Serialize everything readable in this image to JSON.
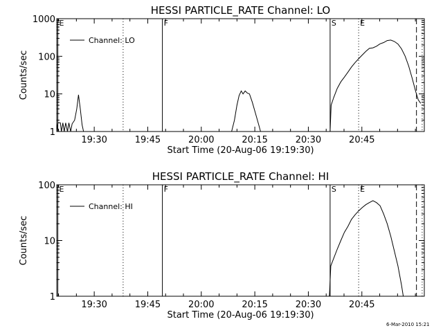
{
  "footer": {
    "date_stamp": "6-Mar-2010 15:21"
  },
  "chart_data": [
    {
      "type": "line",
      "title": "HESSI PARTICLE_RATE Channel: LO",
      "xlabel": "Start Time (20-Aug-06 19:19:30)",
      "ylabel": "Counts/sec",
      "x_unit": "minutes after 19:19:30",
      "xlim": [
        0,
        103
      ],
      "ylim": [
        1,
        1000
      ],
      "yscale": "log",
      "xticks": [
        {
          "x": 10.5,
          "label": "19:30"
        },
        {
          "x": 25.5,
          "label": "19:45"
        },
        {
          "x": 40.5,
          "label": "20:00"
        },
        {
          "x": 55.5,
          "label": "20:15"
        },
        {
          "x": 70.5,
          "label": "20:30"
        },
        {
          "x": 85.5,
          "label": "20:45"
        }
      ],
      "yticks": [
        {
          "y": 1,
          "label": "1"
        },
        {
          "y": 10,
          "label": "10"
        },
        {
          "y": 100,
          "label": "100"
        },
        {
          "y": 1000,
          "label": "1000"
        }
      ],
      "legend": {
        "position": "top-left",
        "entries": [
          "Channel: LO"
        ]
      },
      "markers": [
        {
          "label": "E",
          "x": 0.3,
          "style": "solid"
        },
        {
          "label": "",
          "x": 18.6,
          "style": "dotted"
        },
        {
          "label": "F",
          "x": 29.6,
          "style": "solid"
        },
        {
          "label": "S",
          "x": 76.6,
          "style": "solid"
        },
        {
          "label": "E",
          "x": 84.6,
          "style": "dotted"
        },
        {
          "label": "",
          "x": 100.8,
          "style": "dashed"
        },
        {
          "label": "",
          "x": 102.4,
          "style": "dotted"
        }
      ],
      "series": [
        {
          "name": "Channel: LO",
          "points": [
            [
              0,
              1
            ],
            [
              0.3,
              1.7
            ],
            [
              1,
              1.7
            ],
            [
              1.3,
              1
            ],
            [
              1.7,
              1.7
            ],
            [
              2.1,
              1
            ],
            [
              2.5,
              1.7
            ],
            [
              3,
              1
            ],
            [
              3.4,
              1.7
            ],
            [
              3.9,
              1
            ],
            [
              4.3,
              1.6
            ],
            [
              5,
              2
            ],
            [
              5.6,
              4
            ],
            [
              6.1,
              9.5
            ],
            [
              6.6,
              4
            ],
            [
              7.1,
              1.5
            ],
            [
              7.5,
              1
            ],
            [
              49,
              1
            ],
            [
              49.8,
              2
            ],
            [
              50.5,
              5
            ],
            [
              51.1,
              9
            ],
            [
              51.7,
              12
            ],
            [
              52.2,
              10
            ],
            [
              52.8,
              12
            ],
            [
              53.4,
              10.5
            ],
            [
              54,
              10
            ],
            [
              54.8,
              6
            ],
            [
              55.7,
              3
            ],
            [
              56.6,
              1.5
            ],
            [
              57.1,
              1
            ],
            [
              76.6,
              1
            ],
            [
              76.9,
              5
            ],
            [
              77.6,
              8
            ],
            [
              78.6,
              14
            ],
            [
              79.6,
              21
            ],
            [
              80.6,
              28
            ],
            [
              81.6,
              38
            ],
            [
              82.6,
              52
            ],
            [
              83.6,
              68
            ],
            [
              84.6,
              86
            ],
            [
              85.6,
              108
            ],
            [
              86.6,
              135
            ],
            [
              87.6,
              162
            ],
            [
              88.6,
              168
            ],
            [
              89.6,
              185
            ],
            [
              90.6,
              215
            ],
            [
              91.6,
              232
            ],
            [
              92.6,
              262
            ],
            [
              93.6,
              270
            ],
            [
              94.6,
              248
            ],
            [
              95.6,
              212
            ],
            [
              96.6,
              158
            ],
            [
              97.6,
              102
            ],
            [
              98.6,
              56
            ],
            [
              99.6,
              26
            ],
            [
              100.6,
              11.5
            ],
            [
              101.3,
              7
            ],
            [
              102,
              5.6
            ]
          ]
        }
      ]
    },
    {
      "type": "line",
      "title": "HESSI PARTICLE_RATE Channel: HI",
      "xlabel": "Start Time (20-Aug-06 19:19:30)",
      "ylabel": "Counts/sec",
      "x_unit": "minutes after 19:19:30",
      "xlim": [
        0,
        103
      ],
      "ylim": [
        1,
        100
      ],
      "yscale": "log",
      "xticks": [
        {
          "x": 10.5,
          "label": "19:30"
        },
        {
          "x": 25.5,
          "label": "19:45"
        },
        {
          "x": 40.5,
          "label": "20:00"
        },
        {
          "x": 55.5,
          "label": "20:15"
        },
        {
          "x": 70.5,
          "label": "20:30"
        },
        {
          "x": 85.5,
          "label": "20:45"
        }
      ],
      "yticks": [
        {
          "y": 1,
          "label": "1"
        },
        {
          "y": 10,
          "label": "10"
        },
        {
          "y": 100,
          "label": "100"
        }
      ],
      "legend": {
        "position": "top-left",
        "entries": [
          "Channel: HI"
        ]
      },
      "markers": [
        {
          "label": "E",
          "x": 0.3,
          "style": "solid"
        },
        {
          "label": "",
          "x": 18.6,
          "style": "dotted"
        },
        {
          "label": "F",
          "x": 29.6,
          "style": "solid"
        },
        {
          "label": "S",
          "x": 76.6,
          "style": "solid"
        },
        {
          "label": "E",
          "x": 84.6,
          "style": "dotted"
        },
        {
          "label": "",
          "x": 100.8,
          "style": "dashed"
        },
        {
          "label": "",
          "x": 102.4,
          "style": "dotted"
        }
      ],
      "series": [
        {
          "name": "Channel: HI",
          "points": [
            [
              76.4,
              1
            ],
            [
              76.8,
              3.5
            ],
            [
              77.6,
              4.8
            ],
            [
              78.6,
              7
            ],
            [
              79.6,
              10
            ],
            [
              80.6,
              14
            ],
            [
              81.6,
              18
            ],
            [
              82.6,
              24
            ],
            [
              83.6,
              29
            ],
            [
              84.6,
              34
            ],
            [
              85.6,
              39
            ],
            [
              86.6,
              44
            ],
            [
              87.6,
              48
            ],
            [
              88.6,
              52
            ],
            [
              89.6,
              48
            ],
            [
              90.6,
              42
            ],
            [
              91.6,
              30
            ],
            [
              92.6,
              20
            ],
            [
              93.6,
              12
            ],
            [
              94.6,
              6.5
            ],
            [
              95.6,
              3.5
            ],
            [
              96.6,
              1.6
            ],
            [
              97.1,
              1
            ]
          ]
        }
      ]
    }
  ]
}
